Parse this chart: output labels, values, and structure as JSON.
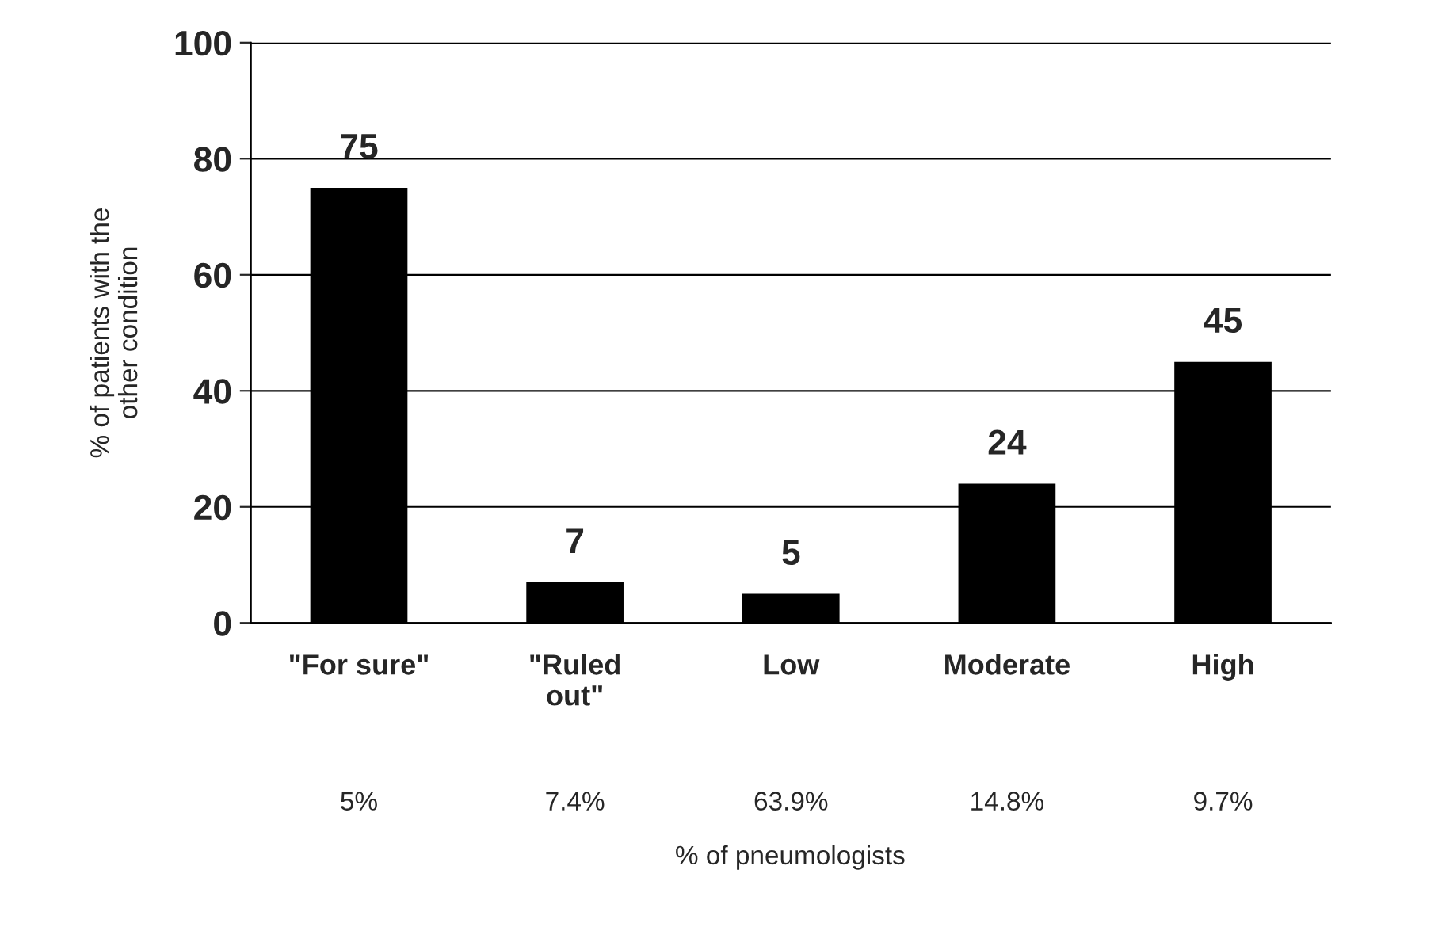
{
  "chart_data": {
    "type": "bar",
    "categories": [
      "\"For sure\"",
      "\"Ruled\nout\"",
      "Low",
      "Moderate",
      "High"
    ],
    "values": [
      75,
      7,
      5,
      24,
      45
    ],
    "color": "#000000",
    "ylim": [
      0,
      100
    ],
    "yticks": [
      0,
      20,
      40,
      60,
      80,
      100
    ],
    "grid": "y",
    "data_labels": true,
    "ylabel": "% of patients with the\nother condition",
    "annotations": [
      "5%",
      "7.4%",
      "63.9%",
      "14.8%",
      "9.7%",
      "% of pneumologists"
    ]
  }
}
